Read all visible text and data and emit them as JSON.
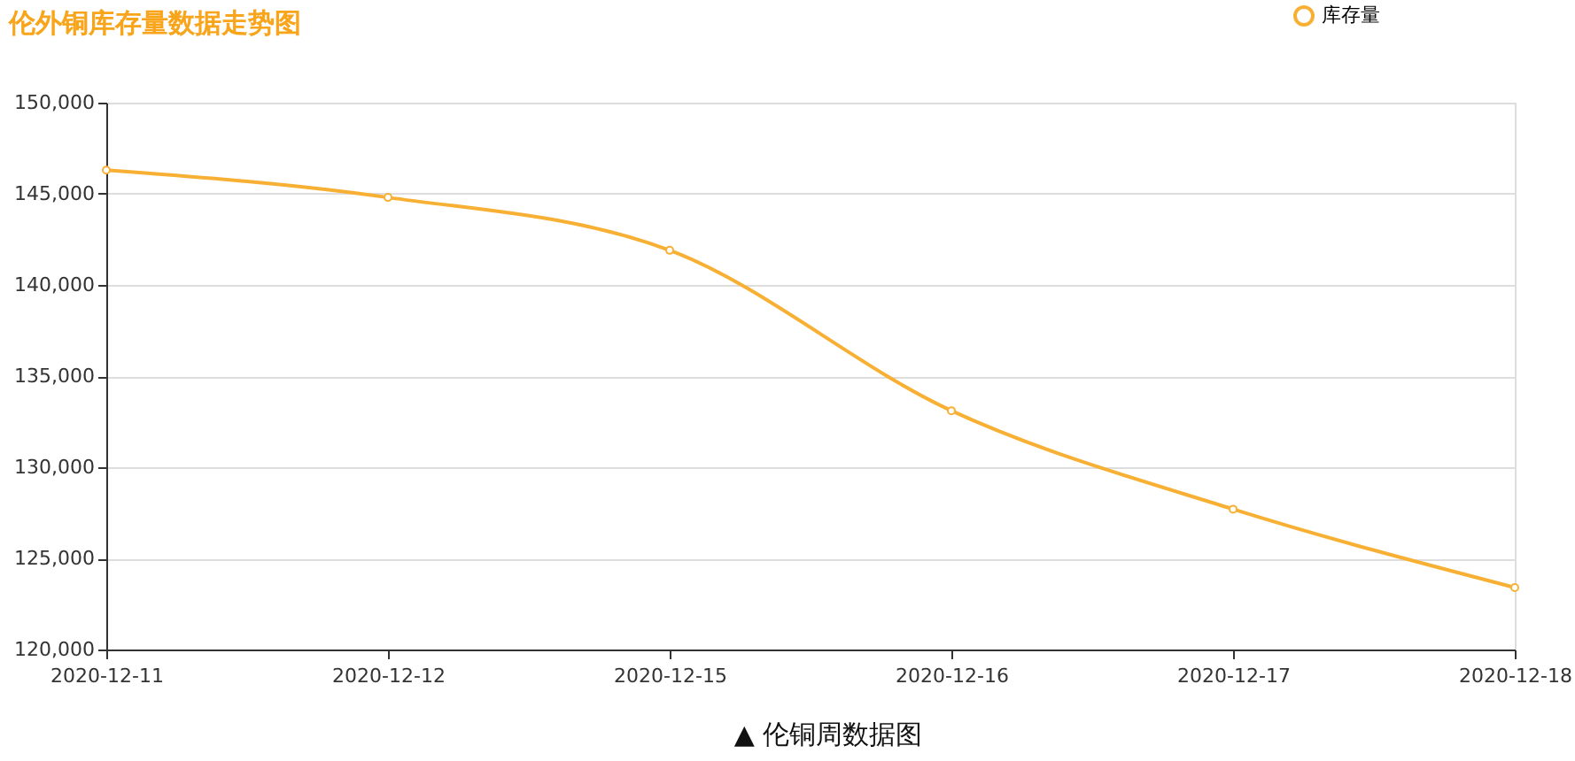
{
  "chart_data": {
    "type": "line",
    "title": "伦外铜库存量数据走势图",
    "categories": [
      "2020-12-11",
      "2020-12-12",
      "2020-12-15",
      "2020-12-16",
      "2020-12-17",
      "2020-12-18"
    ],
    "series": [
      {
        "name": "库存量",
        "color": "#f8b034",
        "values": [
          146300,
          144800,
          141900,
          133100,
          127700,
          123400
        ]
      }
    ],
    "ylim": [
      120000,
      150000
    ],
    "yticks": [
      {
        "value": 120000,
        "label": "120,000"
      },
      {
        "value": 125000,
        "label": "125,000"
      },
      {
        "value": 130000,
        "label": "130,000"
      },
      {
        "value": 135000,
        "label": "135,000"
      },
      {
        "value": 140000,
        "label": "140,000"
      },
      {
        "value": 145000,
        "label": "145,000"
      },
      {
        "value": 150000,
        "label": "150,000"
      }
    ],
    "grid": "y",
    "legend": "top right",
    "marker": "circle",
    "line_style": "solid",
    "annotations": [
      "▲ 伦铜周数据图"
    ]
  }
}
